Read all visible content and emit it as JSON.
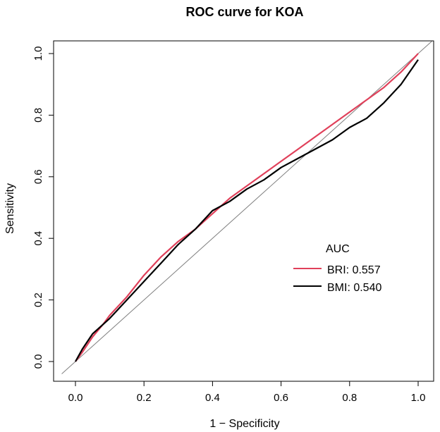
{
  "chart_data": {
    "type": "line",
    "title": "ROC curve for KOA",
    "xlabel": "1 − Specificity",
    "ylabel": "Sensitivity",
    "xlim": [
      0,
      1
    ],
    "ylim": [
      0,
      1
    ],
    "x_ticks": [
      "0.0",
      "0.2",
      "0.4",
      "0.6",
      "0.8",
      "1.0"
    ],
    "y_ticks": [
      "0.0",
      "0.2",
      "0.4",
      "0.6",
      "0.8",
      "1.0"
    ],
    "grid": false,
    "legend": {
      "title": "AUC",
      "position": "right",
      "entries": [
        {
          "label": "BRI: 0.557",
          "color": "#e0405a"
        },
        {
          "label": "BMI: 0.540",
          "color": "#000000"
        }
      ]
    },
    "reference_line": {
      "x": [
        0,
        1
      ],
      "y": [
        0,
        1
      ],
      "color": "#808080"
    },
    "series": [
      {
        "name": "BRI",
        "color": "#e0405a",
        "x": [
          0,
          0.02,
          0.05,
          0.08,
          0.1,
          0.15,
          0.2,
          0.25,
          0.3,
          0.35,
          0.4,
          0.45,
          0.5,
          0.55,
          0.6,
          0.65,
          0.7,
          0.75,
          0.8,
          0.85,
          0.9,
          0.95,
          1.0
        ],
        "y": [
          0,
          0.03,
          0.08,
          0.12,
          0.15,
          0.21,
          0.28,
          0.34,
          0.39,
          0.43,
          0.48,
          0.53,
          0.57,
          0.61,
          0.65,
          0.69,
          0.73,
          0.77,
          0.81,
          0.85,
          0.89,
          0.94,
          1.0
        ]
      },
      {
        "name": "BMI",
        "color": "#000000",
        "x": [
          0,
          0.02,
          0.05,
          0.08,
          0.1,
          0.15,
          0.2,
          0.25,
          0.3,
          0.35,
          0.4,
          0.45,
          0.5,
          0.55,
          0.6,
          0.65,
          0.7,
          0.75,
          0.8,
          0.85,
          0.9,
          0.95,
          1.0
        ],
        "y": [
          0,
          0.04,
          0.09,
          0.12,
          0.14,
          0.2,
          0.26,
          0.32,
          0.38,
          0.43,
          0.49,
          0.52,
          0.56,
          0.59,
          0.63,
          0.66,
          0.69,
          0.72,
          0.76,
          0.79,
          0.84,
          0.9,
          0.98
        ]
      }
    ]
  }
}
